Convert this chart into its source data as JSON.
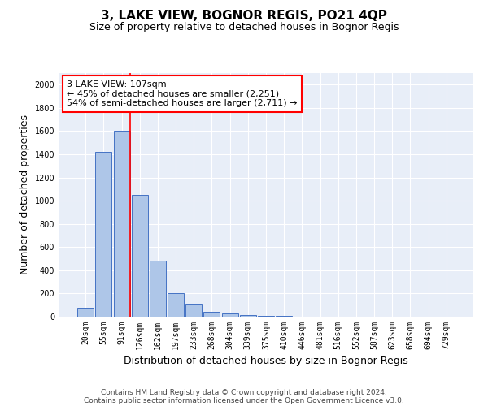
{
  "title": "3, LAKE VIEW, BOGNOR REGIS, PO21 4QP",
  "subtitle": "Size of property relative to detached houses in Bognor Regis",
  "xlabel": "Distribution of detached houses by size in Bognor Regis",
  "ylabel": "Number of detached properties",
  "bar_color": "#aec6e8",
  "bar_edge_color": "#4472c4",
  "background_color": "#e8eef8",
  "grid_color": "#ffffff",
  "categories": [
    "20sqm",
    "55sqm",
    "91sqm",
    "126sqm",
    "162sqm",
    "197sqm",
    "233sqm",
    "268sqm",
    "304sqm",
    "339sqm",
    "375sqm",
    "410sqm",
    "446sqm",
    "481sqm",
    "516sqm",
    "552sqm",
    "587sqm",
    "623sqm",
    "658sqm",
    "694sqm",
    "729sqm"
  ],
  "values": [
    80,
    1420,
    1600,
    1050,
    480,
    200,
    105,
    45,
    25,
    15,
    10,
    5,
    0,
    0,
    0,
    0,
    0,
    0,
    0,
    0,
    0
  ],
  "red_line_bin": 2,
  "ylim": [
    0,
    2100
  ],
  "yticks": [
    0,
    200,
    400,
    600,
    800,
    1000,
    1200,
    1400,
    1600,
    1800,
    2000
  ],
  "annotation_text": "3 LAKE VIEW: 107sqm\n← 45% of detached houses are smaller (2,251)\n54% of semi-detached houses are larger (2,711) →",
  "footer_line1": "Contains HM Land Registry data © Crown copyright and database right 2024.",
  "footer_line2": "Contains public sector information licensed under the Open Government Licence v3.0.",
  "title_fontsize": 11,
  "subtitle_fontsize": 9,
  "label_fontsize": 9,
  "tick_fontsize": 7,
  "annotation_fontsize": 8,
  "footer_fontsize": 6.5
}
